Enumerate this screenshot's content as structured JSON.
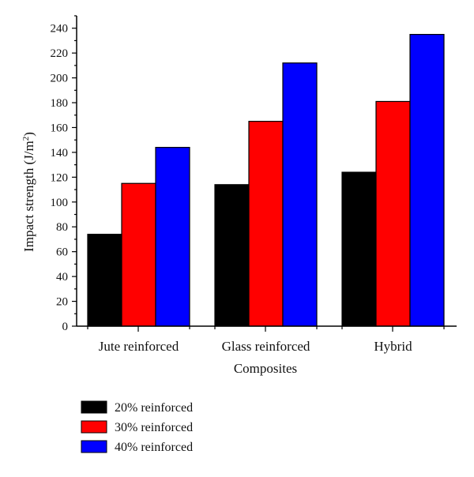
{
  "chart_data": {
    "type": "bar",
    "categories": [
      "Jute reinforced",
      "Glass reinforced",
      "Hybrid"
    ],
    "series": [
      {
        "name": "20% reinforced",
        "color": "#000000",
        "values": [
          74,
          114,
          124
        ]
      },
      {
        "name": "30% reinforced",
        "color": "#ff0000",
        "values": [
          115,
          165,
          181
        ]
      },
      {
        "name": "40% reinforced",
        "color": "#0000ff",
        "values": [
          144,
          212,
          235
        ]
      }
    ],
    "xlabel": "Composites",
    "ylabel_main": "Impact strength (J/m",
    "ylabel_sup": "2",
    "ylabel_end": ")",
    "ylim": [
      0,
      250
    ],
    "yticks": [
      0,
      20,
      40,
      60,
      80,
      100,
      120,
      140,
      160,
      180,
      200,
      220,
      240
    ],
    "grid": false,
    "legend_position": "bottom-left"
  }
}
